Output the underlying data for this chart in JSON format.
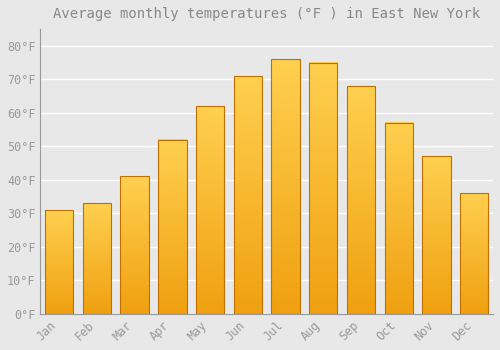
{
  "title": "Average monthly temperatures (°F ) in East New York",
  "months": [
    "Jan",
    "Feb",
    "Mar",
    "Apr",
    "May",
    "Jun",
    "Jul",
    "Aug",
    "Sep",
    "Oct",
    "Nov",
    "Dec"
  ],
  "values": [
    31,
    33,
    41,
    52,
    62,
    71,
    76,
    75,
    68,
    57,
    47,
    36
  ],
  "bar_color_bottom": "#F0A010",
  "bar_color_top": "#FFD050",
  "bar_edge_color": "#C07000",
  "background_color": "#E8E8E8",
  "grid_color": "#FFFFFF",
  "ylim": [
    0,
    85
  ],
  "yticks": [
    0,
    10,
    20,
    30,
    40,
    50,
    60,
    70,
    80
  ],
  "ytick_labels": [
    "0°F",
    "10°F",
    "20°F",
    "30°F",
    "40°F",
    "50°F",
    "60°F",
    "70°F",
    "80°F"
  ],
  "title_fontsize": 10,
  "tick_fontsize": 8.5,
  "title_color": "#888888",
  "tick_color": "#999999",
  "font_family": "monospace",
  "bar_width": 0.75
}
